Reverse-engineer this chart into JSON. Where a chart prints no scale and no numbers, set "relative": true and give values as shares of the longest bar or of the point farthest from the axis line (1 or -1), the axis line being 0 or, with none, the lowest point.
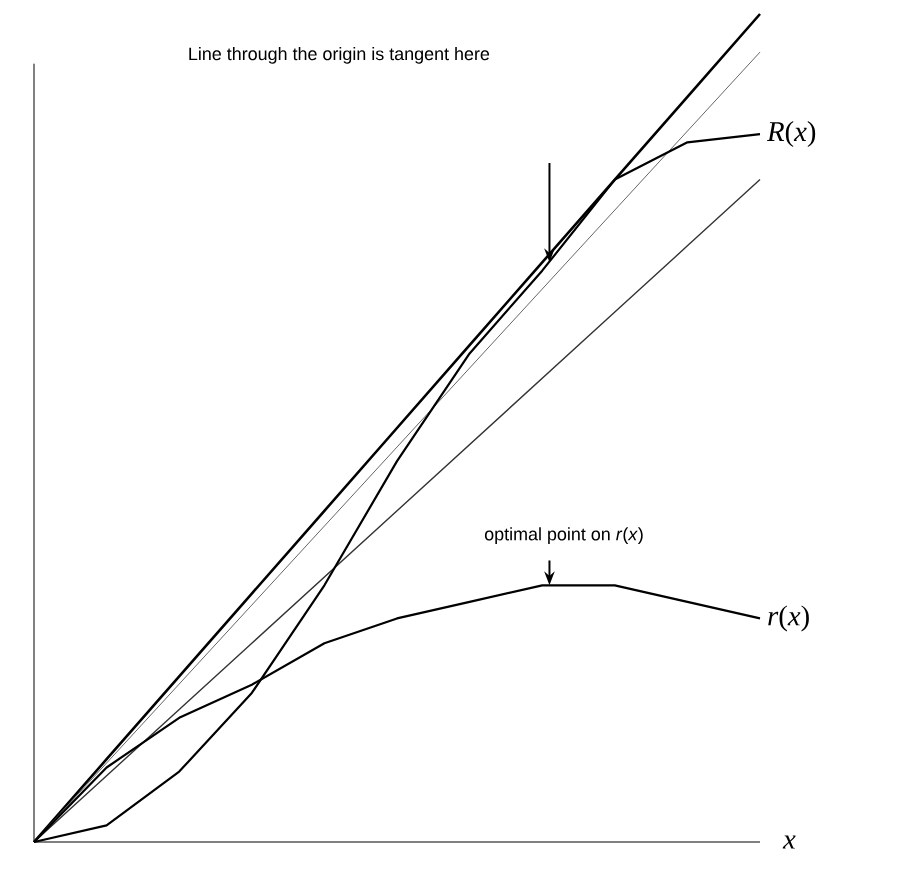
{
  "chart_data": {
    "type": "line",
    "relative": true,
    "xlabel": "*x*",
    "categories": [
      null,
      null,
      null,
      null,
      null,
      null,
      null,
      null,
      null,
      null,
      null
    ],
    "series": [
      {
        "color": "#000000",
        "values": [
          0,
          0.1,
          0.2,
          0.3,
          0.4,
          0.5,
          0.6,
          0.7,
          0.8,
          0.9,
          1.0
        ]
      },
      {
        "color": "#666666",
        "values": [
          0,
          0.0954,
          0.1908,
          0.2862,
          0.3816,
          0.477,
          0.5724,
          0.6678,
          0.7632,
          0.8586,
          0.954
        ]
      },
      {
        "color": "#333333",
        "values": [
          0,
          0.08,
          0.16,
          0.24,
          0.32,
          0.4,
          0.48,
          0.56,
          0.64,
          0.72,
          0.8
        ]
      },
      {
        "name": "*R*(*x*)",
        "color": "#000000",
        "values": [
          0,
          0.02,
          0.085,
          0.18,
          0.31,
          0.46,
          0.59,
          0.69,
          0.8,
          0.845,
          0.855
        ]
      },
      {
        "name": "*r*(*x*)",
        "color": "#000000",
        "values": [
          0,
          0.09,
          0.15,
          0.19,
          0.24,
          0.27,
          0.29,
          0.31,
          0.31,
          0.29,
          0.27
        ]
      }
    ],
    "annotations": [
      "Line through the origin is tangent here",
      "optimal point on *r*(*x*)"
    ]
  }
}
